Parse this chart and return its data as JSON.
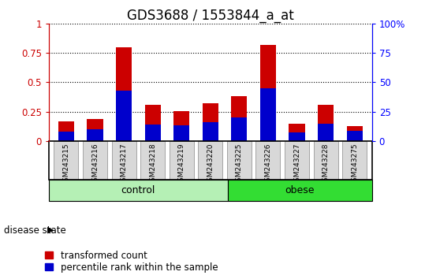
{
  "title": "GDS3688 / 1553844_a_at",
  "samples": [
    "GSM243215",
    "GSM243216",
    "GSM243217",
    "GSM243218",
    "GSM243219",
    "GSM243220",
    "GSM243225",
    "GSM243226",
    "GSM243227",
    "GSM243228",
    "GSM243275"
  ],
  "red_values": [
    0.165,
    0.19,
    0.8,
    0.305,
    0.255,
    0.325,
    0.385,
    0.82,
    0.145,
    0.305,
    0.13
  ],
  "blue_values": [
    0.08,
    0.1,
    0.43,
    0.14,
    0.135,
    0.16,
    0.2,
    0.45,
    0.07,
    0.145,
    0.085
  ],
  "groups": [
    {
      "label": "control",
      "start": 0,
      "end": 6,
      "color": "#b5f0b5"
    },
    {
      "label": "obese",
      "start": 6,
      "end": 11,
      "color": "#33dd33"
    }
  ],
  "ylim": [
    0,
    1.0
  ],
  "yticks": [
    0,
    0.25,
    0.5,
    0.75,
    1.0
  ],
  "ytick_labels_left": [
    "0",
    "0.25",
    "0.5",
    "0.75",
    "1"
  ],
  "ytick_labels_right": [
    "0",
    "25",
    "50",
    "75",
    "100%"
  ],
  "bar_color_red": "#cc0000",
  "bar_color_blue": "#0000cc",
  "bar_width": 0.55,
  "title_fontsize": 12,
  "tick_fontsize": 8.5,
  "label_fontsize": 8.5,
  "disease_state_label": "disease state",
  "legend_red": "transformed count",
  "legend_blue": "percentile rank within the sample",
  "sample_bg_color": "#d8d8d8",
  "group_label_fontsize": 9
}
